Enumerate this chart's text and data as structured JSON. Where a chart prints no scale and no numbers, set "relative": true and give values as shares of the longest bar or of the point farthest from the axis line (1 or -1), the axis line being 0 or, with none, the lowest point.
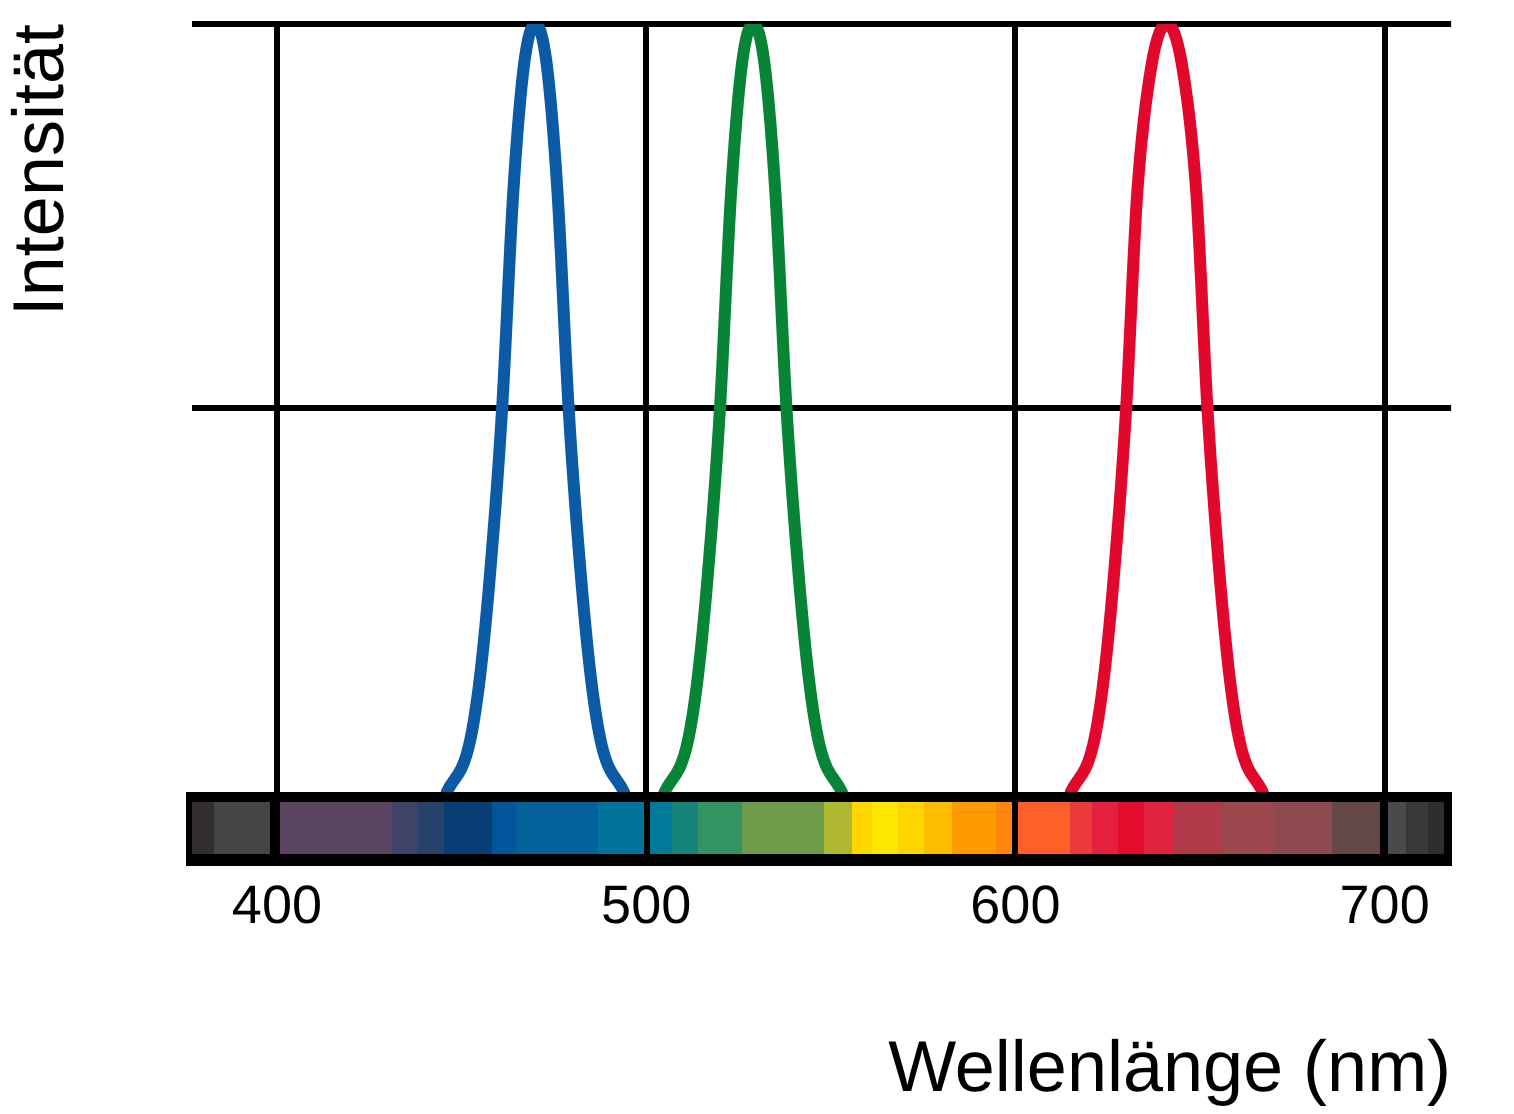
{
  "chart_data": {
    "type": "line",
    "xlabel": "Wellenlänge (nm)",
    "ylabel": "Intensität",
    "relative": true,
    "xlim": [
      377,
      718
    ],
    "xticks": [
      400,
      500,
      600,
      700
    ],
    "grid": true,
    "marker": "none",
    "line_style": "solid",
    "series": [
      {
        "color": "#0a5aa6",
        "x": [
          446,
          452,
          455,
          458,
          461,
          464,
          467,
          470,
          473,
          476,
          479,
          482,
          485,
          488,
          494
        ],
        "values": [
          0,
          0.06,
          0.15,
          0.3,
          0.5,
          0.78,
          0.95,
          1,
          0.95,
          0.78,
          0.5,
          0.3,
          0.15,
          0.06,
          0
        ]
      },
      {
        "color": "#078436",
        "x": [
          505,
          511,
          514,
          517,
          520,
          523,
          526,
          529,
          532,
          535,
          538,
          541,
          544,
          547,
          553
        ],
        "values": [
          0,
          0.06,
          0.15,
          0.3,
          0.5,
          0.78,
          0.95,
          1,
          0.95,
          0.78,
          0.5,
          0.3,
          0.15,
          0.06,
          0
        ]
      },
      {
        "color": "#e2082c",
        "x": [
          615,
          621,
          624,
          627,
          630,
          633,
          637,
          641,
          645,
          649,
          652,
          655,
          658,
          661,
          667
        ],
        "values": [
          0,
          0.06,
          0.15,
          0.3,
          0.5,
          0.78,
          0.95,
          1,
          0.95,
          0.78,
          0.5,
          0.3,
          0.15,
          0.06,
          0
        ]
      }
    ]
  }
}
